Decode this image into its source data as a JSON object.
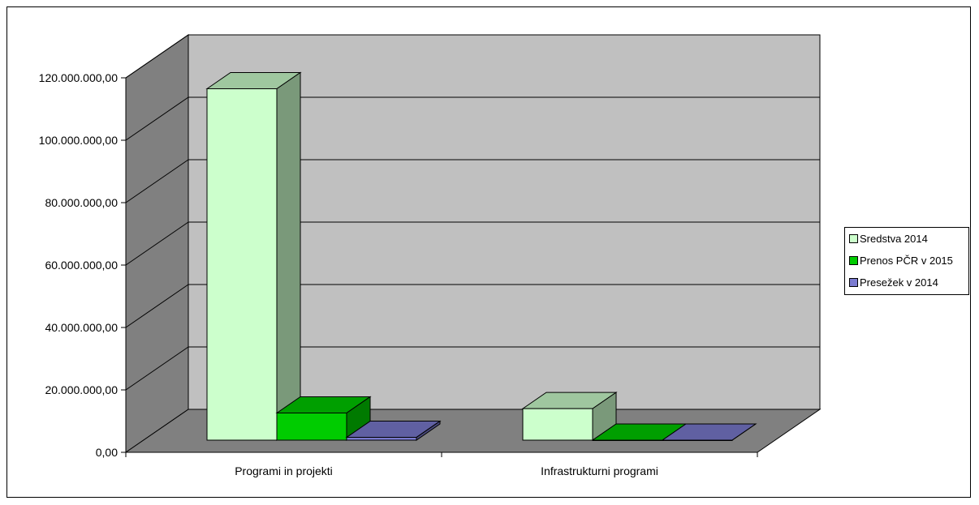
{
  "chart_data": {
    "type": "bar",
    "categories": [
      "Programi in projekti",
      "Infrastrukturni programi"
    ],
    "series": [
      {
        "name": "Sredstva 2014",
        "values": [
          112600000,
          10100000
        ],
        "color": "#ccffcc"
      },
      {
        "name": "Prenos PČR v 2015",
        "values": [
          8700000,
          0
        ],
        "color": "#00cc00"
      },
      {
        "name": "Presežek v 2014",
        "values": [
          900000,
          0
        ],
        "color": "#7b7bd0"
      }
    ],
    "y_ticks": [
      "0,00",
      "20.000.000,00",
      "40.000.000,00",
      "60.000.000,00",
      "80.000.000,00",
      "100.000.000,00",
      "120.000.000,00"
    ],
    "ylim": [
      0,
      120000000
    ],
    "grid": true,
    "legend_position": "right",
    "style": "3d-clustered-column"
  }
}
